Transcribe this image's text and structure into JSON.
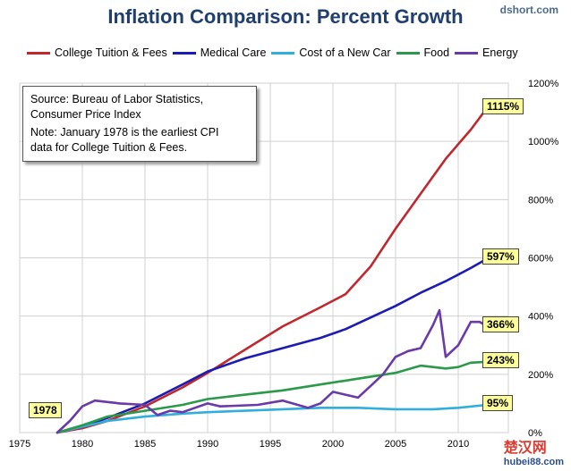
{
  "header": {
    "title": "Inflation Comparison: Percent Growth",
    "source_site": "dshort.com"
  },
  "note": {
    "source_line1": "Source: Bureau of Labor Statistics,",
    "source_line2": "Consumer Price Index",
    "note_line1": "Note: January 1978  is the earliest CPI",
    "note_line2": "data for College Tuition & Fees."
  },
  "start_label": "1978",
  "watermark": {
    "text": "楚汉网",
    "site": "hubei88.com"
  },
  "chart_data": {
    "type": "line",
    "title": "Inflation Comparison: Percent Growth",
    "xlabel": "",
    "ylabel": "",
    "xlim": [
      1975,
      2014
    ],
    "ylim": [
      0,
      1200
    ],
    "x_ticks": [
      1975,
      1980,
      1985,
      1990,
      1995,
      2000,
      2005,
      2010
    ],
    "y_ticks": [
      0,
      200,
      400,
      600,
      800,
      1000,
      1200
    ],
    "y_tick_labels": [
      "0%",
      "200%",
      "400%",
      "600%",
      "800%",
      "1000%",
      "1200%"
    ],
    "series": [
      {
        "name": "College Tuition & Fees",
        "color": "#c0282d",
        "end_label": "1115%",
        "x": [
          1978,
          1980,
          1982,
          1985,
          1988,
          1990,
          1993,
          1996,
          1999,
          2001,
          2003,
          2005,
          2007,
          2009,
          2011,
          2012.3
        ],
        "values": [
          0,
          15,
          40,
          90,
          155,
          205,
          285,
          365,
          430,
          475,
          570,
          700,
          820,
          940,
          1040,
          1115
        ]
      },
      {
        "name": "Medical Care",
        "color": "#1c1cb4",
        "end_label": "597%",
        "x": [
          1978,
          1980,
          1982,
          1985,
          1988,
          1990,
          1993,
          1996,
          1999,
          2001,
          2003,
          2005,
          2007,
          2009,
          2011,
          2012.3
        ],
        "values": [
          0,
          20,
          50,
          100,
          165,
          210,
          255,
          290,
          325,
          355,
          395,
          435,
          480,
          520,
          565,
          597
        ]
      },
      {
        "name": "Cost of a New Car",
        "color": "#31aedb",
        "end_label": "95%",
        "x": [
          1978,
          1980,
          1982,
          1985,
          1988,
          1990,
          1993,
          1996,
          1999,
          2002,
          2005,
          2008,
          2010,
          2012.3
        ],
        "values": [
          0,
          20,
          40,
          55,
          65,
          70,
          75,
          80,
          85,
          85,
          80,
          80,
          85,
          95
        ]
      },
      {
        "name": "Food",
        "color": "#2a9a4a",
        "end_label": "243%",
        "x": [
          1978,
          1980,
          1982,
          1985,
          1988,
          1990,
          1993,
          1996,
          1999,
          2002,
          2005,
          2007,
          2009,
          2010,
          2011,
          2012.3
        ],
        "values": [
          0,
          25,
          55,
          75,
          95,
          115,
          130,
          145,
          165,
          185,
          205,
          230,
          220,
          225,
          240,
          243
        ]
      },
      {
        "name": "Energy",
        "color": "#6a3aa8",
        "end_label": "366%",
        "x": [
          1978,
          1979,
          1980,
          1981,
          1982,
          1983,
          1985,
          1986,
          1987,
          1988,
          1990,
          1991,
          1994,
          1996,
          1998,
          1999,
          2000,
          2001,
          2002,
          2003,
          2004,
          2005,
          2006,
          2007,
          2008,
          2008.5,
          2009,
          2010,
          2011,
          2011.7,
          2012.3
        ],
        "values": [
          0,
          40,
          90,
          110,
          105,
          100,
          95,
          60,
          75,
          70,
          100,
          90,
          95,
          110,
          85,
          100,
          140,
          130,
          120,
          160,
          200,
          260,
          280,
          290,
          370,
          420,
          260,
          300,
          380,
          380,
          366
        ]
      }
    ]
  }
}
